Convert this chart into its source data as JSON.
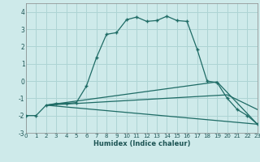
{
  "xlabel": "Humidex (Indice chaleur)",
  "xlim": [
    0,
    23
  ],
  "ylim": [
    -3,
    4.5
  ],
  "yticks": [
    -3,
    -2,
    -1,
    0,
    1,
    2,
    3,
    4
  ],
  "xticks": [
    0,
    1,
    2,
    3,
    4,
    5,
    6,
    7,
    8,
    9,
    10,
    11,
    12,
    13,
    14,
    15,
    16,
    17,
    18,
    19,
    20,
    21,
    22,
    23
  ],
  "background_color": "#ceeaea",
  "grid_color": "#aed4d4",
  "line_color": "#1e6b65",
  "series_main": [
    [
      0,
      -2.0
    ],
    [
      1,
      -2.0
    ],
    [
      2,
      -1.4
    ],
    [
      3,
      -1.3
    ],
    [
      4,
      -1.3
    ],
    [
      5,
      -1.25
    ],
    [
      6,
      -0.3
    ],
    [
      7,
      1.35
    ],
    [
      8,
      2.7
    ],
    [
      9,
      2.8
    ],
    [
      10,
      3.55
    ],
    [
      11,
      3.7
    ],
    [
      12,
      3.45
    ],
    [
      13,
      3.5
    ],
    [
      14,
      3.75
    ],
    [
      15,
      3.5
    ],
    [
      16,
      3.45
    ],
    [
      17,
      1.85
    ],
    [
      18,
      0.0
    ],
    [
      19,
      -0.1
    ],
    [
      20,
      -1.0
    ],
    [
      21,
      -1.65
    ],
    [
      22,
      -2.0
    ],
    [
      23,
      -2.5
    ]
  ],
  "fan_line1": [
    [
      2,
      -1.4
    ],
    [
      23,
      -2.5
    ]
  ],
  "fan_line2": [
    [
      2,
      -1.4
    ],
    [
      20,
      -0.8
    ],
    [
      23,
      -1.65
    ]
  ],
  "fan_line3": [
    [
      2,
      -1.4
    ],
    [
      19,
      -0.05
    ],
    [
      23,
      -2.5
    ]
  ]
}
